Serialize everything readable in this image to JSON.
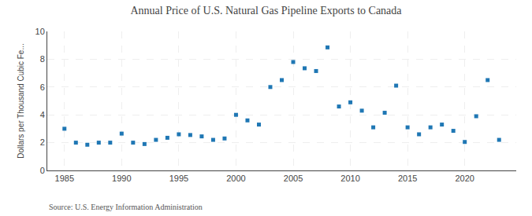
{
  "chart_data": {
    "type": "scatter",
    "title": "Annual Price of U.S. Natural Gas Pipeline Exports to Canada",
    "ylabel": "Dollars per Thousand Cubic Fe...",
    "annotations": [
      "Source: U.S. Energy Information Administration"
    ],
    "x": [
      1985,
      1986,
      1987,
      1988,
      1989,
      1990,
      1991,
      1992,
      1993,
      1994,
      1995,
      1996,
      1997,
      1998,
      1999,
      2000,
      2001,
      2002,
      2003,
      2004,
      2005,
      2006,
      2007,
      2008,
      2009,
      2010,
      2011,
      2012,
      2013,
      2014,
      2015,
      2016,
      2017,
      2018,
      2019,
      2020,
      2021,
      2022,
      2023
    ],
    "values": [
      3.0,
      2.0,
      1.85,
      2.0,
      2.0,
      2.65,
      2.0,
      1.9,
      2.2,
      2.35,
      2.6,
      2.55,
      2.45,
      2.2,
      2.3,
      4.0,
      3.6,
      3.3,
      6.0,
      6.5,
      7.8,
      7.35,
      7.15,
      8.85,
      4.6,
      4.9,
      4.3,
      3.1,
      4.15,
      6.1,
      3.1,
      2.6,
      3.1,
      3.3,
      2.85,
      2.05,
      3.9,
      6.5,
      2.2
    ],
    "marker": "square",
    "xlim": [
      1983.5,
      2024.5
    ],
    "ylim": [
      0,
      10
    ],
    "xticks": [
      1985,
      1990,
      1995,
      2000,
      2005,
      2010,
      2015,
      2020
    ],
    "yticks": [
      0,
      2,
      4,
      6,
      8,
      10
    ],
    "grid": true
  }
}
